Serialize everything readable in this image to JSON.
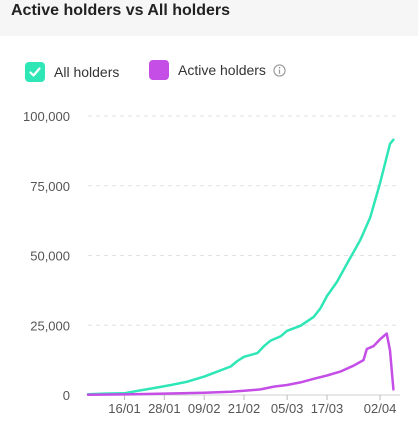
{
  "title": "Active holders vs All holders",
  "legend": [
    {
      "label": "All holders",
      "color": "#2ee6b6",
      "checked": true
    },
    {
      "label": "Active holders",
      "color": "#c44ee6",
      "checked": false,
      "info_icon": "info-icon"
    }
  ],
  "chart_data": {
    "type": "line",
    "title": "Active holders vs All holders",
    "xlabel": "",
    "ylabel": "",
    "ylim": [
      0,
      100000
    ],
    "yticks": [
      0,
      25000,
      50000,
      75000,
      100000
    ],
    "ytick_labels": [
      "0",
      "25,000",
      "50,000",
      "75,000",
      "100,000"
    ],
    "xticks": [
      "2024-01-16",
      "2024-01-28",
      "2024-02-09",
      "2024-02-21",
      "2024-03-05",
      "2024-03-17",
      "2024-04-02"
    ],
    "xtick_labels": [
      "16/01",
      "28/01",
      "09/02",
      "21/02",
      "05/03",
      "17/03",
      "02/04"
    ],
    "xlim": [
      "2024-01-05",
      "2024-04-08"
    ],
    "grid": "horizontal dashed",
    "legend_position": "top-left",
    "series": [
      {
        "name": "All holders",
        "color": "#2ee6b6",
        "points": [
          [
            "2024-01-05",
            300
          ],
          [
            "2024-01-10",
            500
          ],
          [
            "2024-01-16",
            600
          ],
          [
            "2024-01-20",
            1500
          ],
          [
            "2024-01-25",
            2500
          ],
          [
            "2024-01-30",
            3600
          ],
          [
            "2024-02-04",
            4800
          ],
          [
            "2024-02-09",
            6600
          ],
          [
            "2024-02-13",
            8400
          ],
          [
            "2024-02-17",
            10200
          ],
          [
            "2024-02-19",
            12200
          ],
          [
            "2024-02-21",
            13700
          ],
          [
            "2024-02-25",
            15000
          ],
          [
            "2024-02-27",
            17500
          ],
          [
            "2024-02-29",
            19500
          ],
          [
            "2024-03-03",
            21000
          ],
          [
            "2024-03-05",
            23000
          ],
          [
            "2024-03-09",
            24800
          ],
          [
            "2024-03-13",
            28000
          ],
          [
            "2024-03-15",
            31000
          ],
          [
            "2024-03-17",
            35500
          ],
          [
            "2024-03-20",
            40500
          ],
          [
            "2024-03-23",
            47000
          ],
          [
            "2024-03-27",
            55500
          ],
          [
            "2024-03-30",
            63500
          ],
          [
            "2024-04-02",
            76000
          ],
          [
            "2024-04-05",
            90000
          ],
          [
            "2024-04-06",
            91500
          ]
        ]
      },
      {
        "name": "Active holders",
        "color": "#c44ee6",
        "points": [
          [
            "2024-01-05",
            100
          ],
          [
            "2024-01-16",
            200
          ],
          [
            "2024-01-28",
            500
          ],
          [
            "2024-02-09",
            800
          ],
          [
            "2024-02-17",
            1200
          ],
          [
            "2024-02-21",
            1500
          ],
          [
            "2024-02-26",
            2000
          ],
          [
            "2024-03-01",
            3000
          ],
          [
            "2024-03-05",
            3600
          ],
          [
            "2024-03-09",
            4500
          ],
          [
            "2024-03-13",
            5800
          ],
          [
            "2024-03-17",
            7000
          ],
          [
            "2024-03-21",
            8400
          ],
          [
            "2024-03-25",
            10500
          ],
          [
            "2024-03-28",
            12500
          ],
          [
            "2024-03-29",
            16500
          ],
          [
            "2024-03-31",
            17500
          ],
          [
            "2024-04-02",
            20000
          ],
          [
            "2024-04-04",
            22000
          ],
          [
            "2024-04-05",
            16000
          ],
          [
            "2024-04-06",
            2000
          ]
        ]
      }
    ]
  }
}
